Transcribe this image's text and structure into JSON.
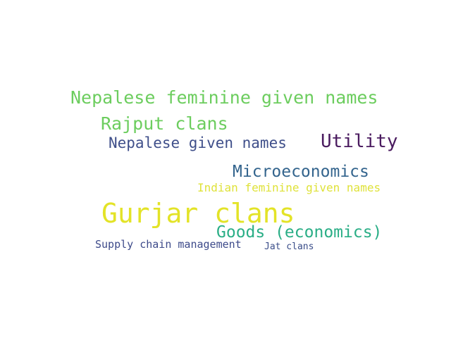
{
  "words": [
    {
      "text": "Nepalese feminine given names",
      "color": "#6ccd5e"
    },
    {
      "text": "Rajput clans",
      "color": "#6ccd5e"
    },
    {
      "text": "Utility",
      "color": "#4a1b5f"
    },
    {
      "text": "Nepalese given names",
      "color": "#3f4f8a"
    },
    {
      "text": "Microeconomics",
      "color": "#33648d"
    },
    {
      "text": "Indian feminine given names",
      "color": "#dfe23a"
    },
    {
      "text": "Gurjar clans",
      "color": "#e3e327"
    },
    {
      "text": "Goods (economics)",
      "color": "#2aae86"
    },
    {
      "text": "Supply chain management",
      "color": "#3d4a8a"
    },
    {
      "text": "Jat clans",
      "color": "#3a4d89"
    }
  ]
}
